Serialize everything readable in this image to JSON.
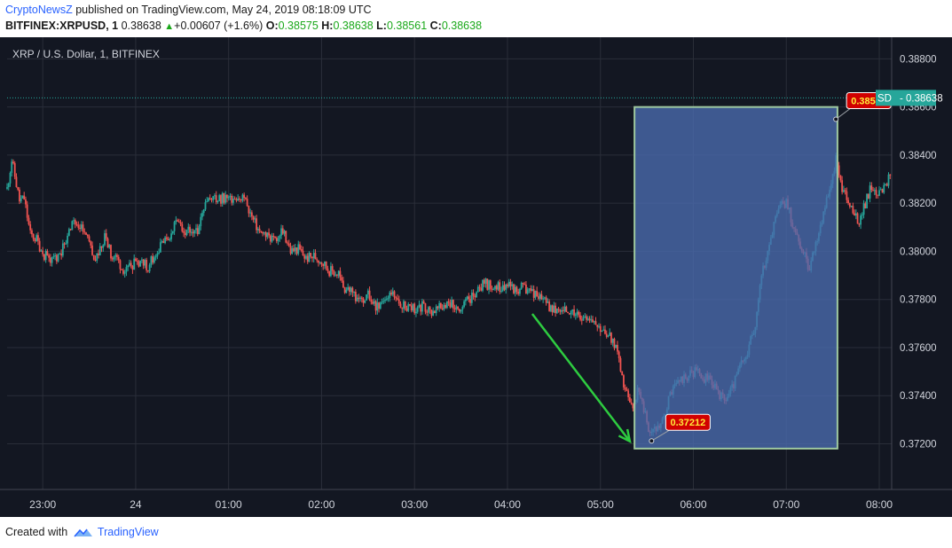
{
  "header": {
    "publisher": "CryptoNewsZ",
    "published_text": "published on TradingView.com, May 24, 2019 08:18:09 UTC"
  },
  "ticker": {
    "symbol": "BITFINEX:XRPUSD, 1",
    "last": "0.38638",
    "change": "+0.00607 (+1.6%)",
    "o_label": "O:",
    "o": "0.38575",
    "h_label": "H:",
    "h": "0.38638",
    "l_label": "L:",
    "l": "0.38561",
    "c_label": "C:",
    "c": "0.38638"
  },
  "footer": {
    "created_with": "Created with",
    "brand": "TradingView"
  },
  "colors": {
    "background": "#131722",
    "grid": "#2a2e39",
    "up": "#26a69a",
    "down": "#ef5350",
    "box_fill": "#4a6cb0",
    "box_border": "#9fc9a0",
    "arrow": "#2ecc40",
    "label_bg": "#d10000",
    "label_text": "#ffeb3b",
    "price_tag": "#26a69a"
  },
  "chart_data": {
    "type": "candlestick",
    "title": "XRP / U.S. Dollar, 1, BITFINEX",
    "ylim": [
      0.3701,
      0.3889
    ],
    "y_ticks": [
      "0.38800",
      "0.38600",
      "0.38400",
      "0.38200",
      "0.38000",
      "0.37800",
      "0.37600",
      "0.37400",
      "0.37200"
    ],
    "x_ticks": [
      {
        "label": "23:00",
        "t": -60
      },
      {
        "label": "24",
        "t": 0
      },
      {
        "label": "01:00",
        "t": 60
      },
      {
        "label": "02:00",
        "t": 120
      },
      {
        "label": "03:00",
        "t": 180
      },
      {
        "label": "04:00",
        "t": 240
      },
      {
        "label": "05:00",
        "t": 300
      },
      {
        "label": "06:00",
        "t": 360
      },
      {
        "label": "07:00",
        "t": 420
      },
      {
        "label": "08:00",
        "t": 480
      }
    ],
    "xlim_minutes": [
      -83,
      488
    ],
    "x_unit": "minutes from 24 May 2019 00:00 UTC",
    "last_price": "0.38638",
    "current_price_label": "0.38638",
    "price_tag_prefix": "SD",
    "ohlc_path": [
      [
        -83,
        0.3826
      ],
      [
        -80,
        0.3838
      ],
      [
        -75,
        0.3821
      ],
      [
        -72,
        0.3822
      ],
      [
        -68,
        0.3807
      ],
      [
        -64,
        0.3805
      ],
      [
        -60,
        0.3799
      ],
      [
        -56,
        0.3797
      ],
      [
        -52,
        0.3797
      ],
      [
        -48,
        0.38
      ],
      [
        -44,
        0.3807
      ],
      [
        -40,
        0.3812
      ],
      [
        -36,
        0.3811
      ],
      [
        -32,
        0.3808
      ],
      [
        -28,
        0.3798
      ],
      [
        -24,
        0.3798
      ],
      [
        -20,
        0.3806
      ],
      [
        -16,
        0.3799
      ],
      [
        -12,
        0.3797
      ],
      [
        -8,
        0.3792
      ],
      [
        -4,
        0.3794
      ],
      [
        0,
        0.3795
      ],
      [
        4,
        0.3795
      ],
      [
        8,
        0.3794
      ],
      [
        12,
        0.3798
      ],
      [
        16,
        0.3803
      ],
      [
        20,
        0.3804
      ],
      [
        24,
        0.381
      ],
      [
        28,
        0.3812
      ],
      [
        32,
        0.3808
      ],
      [
        36,
        0.381
      ],
      [
        40,
        0.3808
      ],
      [
        45,
        0.3819
      ],
      [
        50,
        0.3822
      ],
      [
        55,
        0.3822
      ],
      [
        60,
        0.3822
      ],
      [
        65,
        0.3823
      ],
      [
        70,
        0.3822
      ],
      [
        75,
        0.3814
      ],
      [
        80,
        0.3808
      ],
      [
        85,
        0.3806
      ],
      [
        90,
        0.3805
      ],
      [
        95,
        0.3808
      ],
      [
        100,
        0.38
      ],
      [
        105,
        0.3801
      ],
      [
        110,
        0.3797
      ],
      [
        115,
        0.3798
      ],
      [
        120,
        0.3796
      ],
      [
        125,
        0.3792
      ],
      [
        130,
        0.3791
      ],
      [
        135,
        0.3784
      ],
      [
        140,
        0.3783
      ],
      [
        145,
        0.3779
      ],
      [
        150,
        0.3782
      ],
      [
        155,
        0.3777
      ],
      [
        160,
        0.378
      ],
      [
        165,
        0.3782
      ],
      [
        170,
        0.3779
      ],
      [
        175,
        0.3777
      ],
      [
        180,
        0.3776
      ],
      [
        185,
        0.3777
      ],
      [
        190,
        0.3775
      ],
      [
        195,
        0.3776
      ],
      [
        200,
        0.3777
      ],
      [
        205,
        0.3778
      ],
      [
        210,
        0.3776
      ],
      [
        215,
        0.378
      ],
      [
        220,
        0.3783
      ],
      [
        225,
        0.3787
      ],
      [
        230,
        0.3785
      ],
      [
        235,
        0.3785
      ],
      [
        240,
        0.3786
      ],
      [
        245,
        0.3784
      ],
      [
        250,
        0.3785
      ],
      [
        255,
        0.3783
      ],
      [
        260,
        0.3781
      ],
      [
        265,
        0.3778
      ],
      [
        270,
        0.3776
      ],
      [
        275,
        0.3775
      ],
      [
        280,
        0.3776
      ],
      [
        285,
        0.3775
      ],
      [
        290,
        0.3772
      ],
      [
        295,
        0.3769
      ],
      [
        300,
        0.3767
      ],
      [
        305,
        0.3765
      ],
      [
        310,
        0.376
      ],
      [
        315,
        0.3744
      ],
      [
        318,
        0.3738
      ],
      [
        321,
        0.3735
      ],
      [
        324,
        0.3743
      ],
      [
        327,
        0.3738
      ],
      [
        330,
        0.3728
      ],
      [
        333,
        0.3724
      ],
      [
        336,
        0.3726
      ],
      [
        340,
        0.373
      ],
      [
        345,
        0.374
      ],
      [
        350,
        0.3746
      ],
      [
        355,
        0.3748
      ],
      [
        360,
        0.375
      ],
      [
        365,
        0.3748
      ],
      [
        370,
        0.3747
      ],
      [
        375,
        0.3742
      ],
      [
        380,
        0.3738
      ],
      [
        385,
        0.3743
      ],
      [
        390,
        0.3752
      ],
      [
        395,
        0.3758
      ],
      [
        400,
        0.377
      ],
      [
        405,
        0.3793
      ],
      [
        410,
        0.3805
      ],
      [
        415,
        0.382
      ],
      [
        420,
        0.382
      ],
      [
        425,
        0.381
      ],
      [
        430,
        0.38
      ],
      [
        435,
        0.3793
      ],
      [
        440,
        0.3805
      ],
      [
        445,
        0.3818
      ],
      [
        450,
        0.383
      ],
      [
        452,
        0.384
      ],
      [
        455,
        0.3828
      ],
      [
        458,
        0.3823
      ],
      [
        462,
        0.382
      ],
      [
        466,
        0.3812
      ],
      [
        470,
        0.3818
      ],
      [
        474,
        0.3826
      ],
      [
        478,
        0.3822
      ],
      [
        482,
        0.3825
      ],
      [
        486,
        0.383
      ],
      [
        490,
        0.384
      ],
      [
        494,
        0.3857
      ],
      [
        497,
        0.3868
      ],
      [
        500,
        0.3865
      ],
      [
        504,
        0.3864
      ]
    ],
    "annotations": [
      {
        "type": "rectangle",
        "t_start": 322,
        "t_end": 453,
        "y_top": 0.386,
        "y_bottom": 0.3718
      },
      {
        "type": "price_label",
        "text": "0.37212",
        "t": 333,
        "y": 0.37212
      },
      {
        "type": "price_label",
        "text": "0.38549",
        "t": 452,
        "y": 0.38549
      },
      {
        "type": "arrow",
        "from_t": 256,
        "from_y": 0.3774,
        "to_t": 319,
        "to_y": 0.3721
      }
    ]
  }
}
